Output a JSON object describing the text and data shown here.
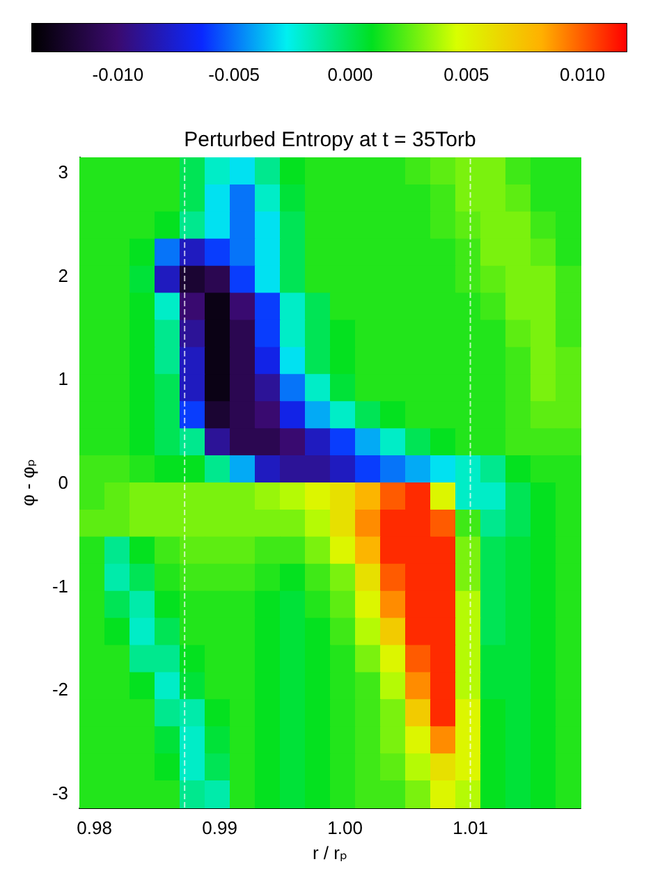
{
  "chart_data": {
    "type": "heatmap",
    "title": "Perturbed Entropy at t = 35Torb",
    "xlabel": "r / rₚ",
    "ylabel": "φ - φₚ",
    "x": [
      0.9798,
      0.9818,
      0.9838,
      0.9858,
      0.9878,
      0.9898,
      0.9918,
      0.9938,
      0.9958,
      0.9978,
      0.9998,
      1.0018,
      1.0038,
      1.0058,
      1.0078,
      1.0098,
      1.0118,
      1.0138,
      1.0158,
      1.0178
    ],
    "y": [
      3.011,
      2.749,
      2.487,
      2.225,
      1.963,
      1.702,
      1.44,
      1.178,
      0.916,
      0.654,
      0.393,
      0.131,
      -0.131,
      -0.393,
      -0.654,
      -0.916,
      -1.178,
      -1.44,
      -1.702,
      -1.963,
      -2.225,
      -2.487,
      -2.749,
      -3.011
    ],
    "xlim": [
      0.9788,
      1.0188
    ],
    "xticks": [
      0.98,
      0.99,
      {
        "value": 1,
        "label": "1.00"
      },
      1.01
    ],
    "ylim": [
      -3.1416,
      3.1416
    ],
    "yticks": [
      -3,
      -2,
      -1,
      0,
      1,
      2,
      3
    ],
    "clim": [
      -0.0137,
      0.0119
    ],
    "cticks": [
      {
        "value": -0.01,
        "label": "-0.010"
      },
      {
        "value": -0.005,
        "label": "-0.005"
      },
      {
        "value": 0,
        "label": "0.000"
      },
      {
        "value": 0.005,
        "label": "0.005"
      },
      {
        "value": 0.01,
        "label": "0.010"
      }
    ],
    "ref_lines": [
      {
        "axis": "x",
        "value": 0.9872,
        "color": "#ffffff",
        "line_style": "dashed"
      },
      {
        "axis": "x",
        "value": 1.01,
        "color": "#ffffff",
        "line_style": "dashed"
      }
    ],
    "cells": [
      [
        0.0015,
        0.0015,
        0.0015,
        0.0015,
        0.0,
        -0.002,
        -0.003,
        -0.001,
        0.001,
        0.0015,
        0.0015,
        0.0015,
        0.0015,
        0.002,
        0.0025,
        0.003,
        0.003,
        0.002,
        0.0015,
        0.0015
      ],
      [
        0.0015,
        0.0015,
        0.0015,
        0.0015,
        0.0,
        -0.003,
        -0.005,
        -0.002,
        0.0005,
        0.0015,
        0.0015,
        0.0015,
        0.0015,
        0.0015,
        0.002,
        0.003,
        0.003,
        0.0025,
        0.0015,
        0.0015
      ],
      [
        0.0015,
        0.0015,
        0.0015,
        0.001,
        -0.001,
        -0.003,
        -0.005,
        -0.003,
        0.0,
        0.0015,
        0.0015,
        0.0015,
        0.0015,
        0.0015,
        0.002,
        0.0025,
        0.003,
        0.003,
        0.002,
        0.0015
      ],
      [
        0.0015,
        0.0015,
        0.001,
        -0.005,
        -0.008,
        -0.006,
        -0.005,
        -0.003,
        0.0,
        0.0015,
        0.0015,
        0.0015,
        0.0015,
        0.0015,
        0.0015,
        0.002,
        0.003,
        0.003,
        0.0025,
        0.0015
      ],
      [
        0.0015,
        0.0015,
        0.0005,
        -0.008,
        -0.012,
        -0.011,
        -0.006,
        -0.003,
        0.0,
        0.0015,
        0.0015,
        0.0015,
        0.0015,
        0.0015,
        0.0015,
        0.002,
        0.0025,
        0.003,
        0.003,
        0.002
      ],
      [
        0.0015,
        0.0015,
        0.001,
        -0.002,
        -0.01,
        -0.013,
        -0.01,
        -0.006,
        -0.002,
        0.0,
        0.0015,
        0.0015,
        0.0015,
        0.0015,
        0.0015,
        0.0015,
        0.002,
        0.003,
        0.003,
        0.002
      ],
      [
        0.0015,
        0.0015,
        0.001,
        -0.001,
        -0.009,
        -0.013,
        -0.011,
        -0.006,
        -0.002,
        0.0,
        0.001,
        0.0015,
        0.0015,
        0.0015,
        0.0015,
        0.0015,
        0.0015,
        0.0025,
        0.003,
        0.002
      ],
      [
        0.0015,
        0.0015,
        0.001,
        -0.001,
        -0.008,
        -0.013,
        -0.011,
        -0.007,
        -0.003,
        0.0,
        0.001,
        0.0015,
        0.0015,
        0.0015,
        0.0015,
        0.0015,
        0.0015,
        0.002,
        0.003,
        0.0025
      ],
      [
        0.0015,
        0.0015,
        0.001,
        0.0,
        -0.008,
        -0.013,
        -0.011,
        -0.009,
        -0.005,
        -0.002,
        0.0005,
        0.0015,
        0.0015,
        0.0015,
        0.0015,
        0.0015,
        0.0015,
        0.002,
        0.003,
        0.0025
      ],
      [
        0.0015,
        0.0015,
        0.001,
        0.0,
        -0.006,
        -0.012,
        -0.011,
        -0.01,
        -0.007,
        -0.004,
        -0.002,
        0.0,
        0.001,
        0.0015,
        0.0015,
        0.0015,
        0.0015,
        0.002,
        0.0025,
        0.0025
      ],
      [
        0.0015,
        0.0015,
        0.001,
        0.0,
        -0.001,
        -0.009,
        -0.011,
        -0.011,
        -0.01,
        -0.008,
        -0.006,
        -0.004,
        -0.002,
        0.0,
        0.001,
        0.0015,
        0.0015,
        0.002,
        0.002,
        0.002
      ],
      [
        0.002,
        0.002,
        0.0015,
        0.001,
        0.001,
        -0.001,
        -0.004,
        -0.008,
        -0.009,
        -0.009,
        -0.008,
        -0.006,
        -0.005,
        -0.004,
        -0.003,
        -0.002,
        -0.001,
        0.001,
        0.0015,
        0.0015
      ],
      [
        0.002,
        0.0025,
        0.003,
        0.003,
        0.003,
        0.003,
        0.003,
        0.0035,
        0.004,
        0.005,
        0.006,
        0.008,
        0.01,
        0.011,
        0.005,
        -0.002,
        -0.002,
        0.0,
        0.001,
        0.0015
      ],
      [
        0.0025,
        0.0025,
        0.003,
        0.003,
        0.003,
        0.003,
        0.003,
        0.003,
        0.003,
        0.004,
        0.006,
        0.009,
        0.011,
        0.011,
        0.01,
        0.002,
        -0.001,
        0.0,
        0.001,
        0.0015
      ],
      [
        0.0015,
        -0.001,
        0.001,
        0.002,
        0.0025,
        0.0025,
        0.0025,
        0.002,
        0.002,
        0.003,
        0.005,
        0.008,
        0.011,
        0.011,
        0.011,
        0.003,
        0.0,
        0.0005,
        0.001,
        0.0015
      ],
      [
        0.0015,
        -0.0015,
        0.0,
        0.0015,
        0.002,
        0.002,
        0.002,
        0.0015,
        0.001,
        0.002,
        0.003,
        0.006,
        0.01,
        0.011,
        0.011,
        0.003,
        0.0,
        0.0005,
        0.001,
        0.0015
      ],
      [
        0.0015,
        0.0,
        -0.0015,
        0.001,
        0.0015,
        0.0015,
        0.0015,
        0.001,
        0.0005,
        0.0015,
        0.0025,
        0.005,
        0.009,
        0.011,
        0.011,
        0.004,
        0.0,
        0.0005,
        0.001,
        0.0015
      ],
      [
        0.0015,
        0.001,
        -0.002,
        0.0,
        0.0015,
        0.0015,
        0.0015,
        0.001,
        0.0005,
        0.001,
        0.002,
        0.004,
        0.007,
        0.011,
        0.011,
        0.004,
        0.0,
        0.0005,
        0.001,
        0.0015
      ],
      [
        0.0015,
        0.0015,
        -0.001,
        -0.001,
        0.001,
        0.0015,
        0.0015,
        0.001,
        0.0005,
        0.001,
        0.0015,
        0.003,
        0.005,
        0.01,
        0.011,
        0.004,
        0.0005,
        0.0005,
        0.001,
        0.0015
      ],
      [
        0.0015,
        0.0015,
        0.001,
        -0.002,
        0.0005,
        0.0015,
        0.0015,
        0.001,
        0.0005,
        0.001,
        0.0015,
        0.002,
        0.004,
        0.009,
        0.011,
        0.004,
        0.0005,
        0.0005,
        0.001,
        0.0015
      ],
      [
        0.0015,
        0.0015,
        0.0015,
        -0.001,
        -0.0015,
        0.001,
        0.0015,
        0.001,
        0.0005,
        0.001,
        0.0015,
        0.002,
        0.003,
        0.007,
        0.011,
        0.005,
        0.001,
        0.0005,
        0.001,
        0.0015
      ],
      [
        0.0015,
        0.0015,
        0.0015,
        0.0005,
        -0.002,
        0.0005,
        0.0015,
        0.001,
        0.0005,
        0.001,
        0.0015,
        0.002,
        0.003,
        0.005,
        0.009,
        0.005,
        0.001,
        0.0005,
        0.001,
        0.0015
      ],
      [
        0.0015,
        0.0015,
        0.0015,
        0.001,
        -0.002,
        0.0,
        0.0015,
        0.001,
        0.0005,
        0.001,
        0.0015,
        0.002,
        0.0025,
        0.004,
        0.006,
        0.005,
        0.001,
        0.0005,
        0.001,
        0.0015
      ],
      [
        0.0015,
        0.0015,
        0.0015,
        0.0015,
        -0.001,
        -0.0015,
        0.0015,
        0.001,
        0.0005,
        0.001,
        0.0015,
        0.002,
        0.002,
        0.003,
        0.005,
        0.004,
        0.001,
        0.0005,
        0.001,
        0.0015
      ]
    ]
  }
}
